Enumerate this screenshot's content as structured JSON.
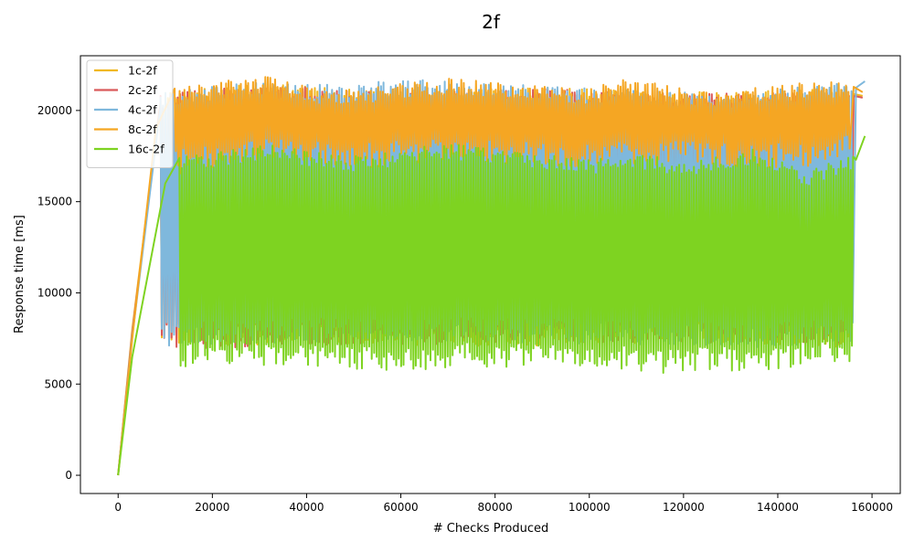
{
  "chart_data": {
    "type": "line",
    "title": "2f",
    "xlabel": "# Checks Produced",
    "ylabel": "Response time [ms]",
    "xlim": [
      -8000,
      166000
    ],
    "ylim": [
      -1000,
      23000
    ],
    "xticks": [
      0,
      20000,
      40000,
      60000,
      80000,
      100000,
      120000,
      140000,
      160000
    ],
    "xtick_labels": [
      "0",
      "20000",
      "40000",
      "60000",
      "80000",
      "100000",
      "120000",
      "140000",
      "160000"
    ],
    "yticks": [
      0,
      5000,
      10000,
      15000,
      20000
    ],
    "ytick_labels": [
      "0",
      "5000",
      "10000",
      "15000",
      "20000"
    ],
    "grid": false,
    "legend_position": "top-left",
    "series": [
      {
        "name": "1c-2f",
        "color": "#f0b823",
        "x_end": 158000,
        "end_value": 20800,
        "ramp": [
          [
            0,
            0
          ],
          [
            3000,
            8000
          ],
          [
            9000,
            20500
          ]
        ],
        "upper_envelope": [
          [
            9000,
            21000
          ],
          [
            30000,
            21500
          ],
          [
            60000,
            21000
          ],
          [
            90000,
            21300
          ],
          [
            120000,
            21000
          ],
          [
            150000,
            21200
          ]
        ],
        "lower_envelope": [
          [
            9000,
            7000
          ],
          [
            40000,
            7200
          ],
          [
            80000,
            7000
          ],
          [
            120000,
            7300
          ],
          [
            150000,
            7000
          ]
        ]
      },
      {
        "name": "2c-2f",
        "color": "#d9595a",
        "x_end": 158000,
        "end_value": 20700,
        "ramp": [
          [
            0,
            0
          ],
          [
            3000,
            7800
          ],
          [
            9000,
            20400
          ]
        ],
        "upper_envelope": [
          [
            9000,
            20900
          ],
          [
            30000,
            21400
          ],
          [
            60000,
            21000
          ],
          [
            90000,
            21200
          ],
          [
            120000,
            20900
          ],
          [
            150000,
            21100
          ]
        ],
        "lower_envelope": [
          [
            9000,
            6900
          ],
          [
            40000,
            7100
          ],
          [
            80000,
            7200
          ],
          [
            120000,
            7300
          ],
          [
            150000,
            7100
          ]
        ]
      },
      {
        "name": "4c-2f",
        "color": "#7fb8dc",
        "x_end": 158500,
        "end_value": 21600,
        "ramp": [
          [
            0,
            0
          ],
          [
            3000,
            7600
          ],
          [
            9000,
            20200
          ]
        ],
        "upper_envelope": [
          [
            9000,
            21000
          ],
          [
            26000,
            21500
          ],
          [
            50000,
            21500
          ],
          [
            65000,
            21700
          ],
          [
            100000,
            21200
          ],
          [
            130000,
            21000
          ],
          [
            158500,
            21600
          ]
        ],
        "lower_envelope": [
          [
            9000,
            7000
          ],
          [
            40000,
            7300
          ],
          [
            80000,
            7300
          ],
          [
            135000,
            7000
          ],
          [
            150000,
            7200
          ]
        ]
      },
      {
        "name": "8c-2f",
        "color": "#f5a623",
        "x_end": 158000,
        "end_value": 21000,
        "ramp": [
          [
            0,
            0
          ],
          [
            3000,
            7500
          ],
          [
            8000,
            19000
          ],
          [
            12000,
            21200
          ]
        ],
        "upper_envelope": [
          [
            12000,
            21300
          ],
          [
            32000,
            22000
          ],
          [
            45000,
            21000
          ],
          [
            70000,
            21800
          ],
          [
            100000,
            21200
          ],
          [
            108000,
            21800
          ],
          [
            125000,
            21000
          ],
          [
            145000,
            21500
          ],
          [
            156000,
            21600
          ]
        ],
        "lower_envelope": [
          [
            12000,
            16500
          ],
          [
            30000,
            17200
          ],
          [
            50000,
            16800
          ],
          [
            70000,
            17200
          ],
          [
            100000,
            16900
          ],
          [
            120000,
            17000
          ],
          [
            146000,
            16800
          ],
          [
            156000,
            17500
          ]
        ]
      },
      {
        "name": "16c-2f",
        "color": "#7ed321",
        "x_end": 158500,
        "end_value": 18600,
        "ramp": [
          [
            0,
            0
          ],
          [
            3000,
            6500
          ],
          [
            10000,
            16000
          ],
          [
            13000,
            17400
          ]
        ],
        "upper_envelope": [
          [
            13000,
            17500
          ],
          [
            32000,
            18100
          ],
          [
            50000,
            17500
          ],
          [
            70000,
            18200
          ],
          [
            100000,
            17300
          ],
          [
            110000,
            17700
          ],
          [
            120000,
            17200
          ],
          [
            135000,
            17900
          ],
          [
            146000,
            16700
          ],
          [
            156000,
            17600
          ]
        ],
        "lower_envelope": [
          [
            6000,
            5700
          ],
          [
            20000,
            6100
          ],
          [
            35000,
            6000
          ],
          [
            58000,
            5600
          ],
          [
            75000,
            5900
          ],
          [
            95000,
            5900
          ],
          [
            115000,
            5600
          ],
          [
            140000,
            5800
          ],
          [
            156000,
            6200
          ]
        ]
      }
    ]
  }
}
